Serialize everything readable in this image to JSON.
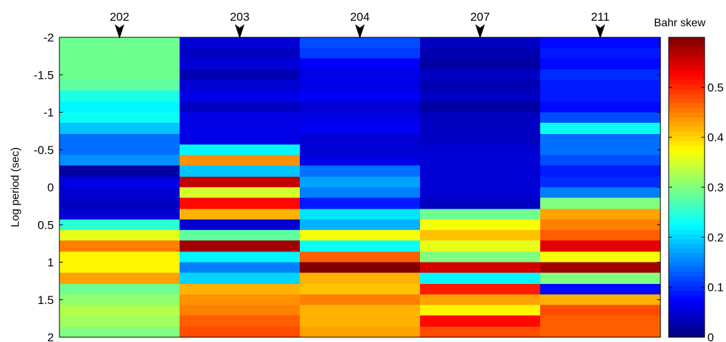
{
  "chart_data": {
    "type": "heatmap",
    "title": "",
    "xlabel": "",
    "ylabel": "Log period (sec)",
    "ylim": [
      -2,
      2
    ],
    "y_ticks": [
      -2,
      -1.5,
      -1,
      -0.5,
      0,
      0.5,
      1,
      1.5,
      2
    ],
    "y_tick_labels": [
      "-2",
      "-1.5",
      "-1",
      "-0.5",
      "0",
      "0.5",
      "1",
      "1.5",
      "2"
    ],
    "stations": [
      "202",
      "203",
      "204",
      "207",
      "211"
    ],
    "colorbar": {
      "label": "Bahr skew",
      "range": [
        0,
        0.6
      ],
      "ticks": [
        0,
        0.1,
        0.2,
        0.3,
        0.4,
        0.5
      ],
      "tick_labels": [
        "0",
        "0.1",
        "0.2",
        "0.3",
        "0.4",
        "0.5"
      ],
      "colormap": "jet"
    },
    "row_edges": [
      -2.0,
      -1.86,
      -1.72,
      -1.57,
      -1.43,
      -1.29,
      -1.14,
      -1.0,
      -0.86,
      -0.71,
      -0.57,
      -0.43,
      -0.29,
      -0.14,
      0.0,
      0.14,
      0.29,
      0.43,
      0.57,
      0.71,
      0.86,
      1.0,
      1.14,
      1.29,
      1.43,
      1.57,
      1.71,
      1.86,
      2.0
    ],
    "values": [
      [
        0.29,
        0.05,
        0.12,
        0.04,
        0.08
      ],
      [
        0.29,
        0.04,
        0.11,
        0.03,
        0.09
      ],
      [
        0.29,
        0.05,
        0.07,
        0.02,
        0.08
      ],
      [
        0.29,
        0.03,
        0.06,
        0.04,
        0.1
      ],
      [
        0.28,
        0.05,
        0.06,
        0.03,
        0.09
      ],
      [
        0.24,
        0.06,
        0.07,
        0.04,
        0.09
      ],
      [
        0.22,
        0.04,
        0.05,
        0.02,
        0.08
      ],
      [
        0.23,
        0.06,
        0.06,
        0.04,
        0.12
      ],
      [
        0.19,
        0.06,
        0.07,
        0.04,
        0.23
      ],
      [
        0.14,
        0.06,
        0.05,
        0.04,
        0.14
      ],
      [
        0.14,
        0.22,
        0.05,
        0.05,
        0.14
      ],
      [
        0.16,
        0.44,
        0.06,
        0.05,
        0.12
      ],
      [
        0.02,
        0.19,
        0.14,
        0.05,
        0.09
      ],
      [
        0.06,
        0.56,
        0.17,
        0.05,
        0.1
      ],
      [
        0.05,
        0.35,
        0.15,
        0.05,
        0.15
      ],
      [
        0.04,
        0.52,
        0.09,
        0.04,
        0.3
      ],
      [
        0.05,
        0.42,
        0.21,
        0.29,
        0.43
      ],
      [
        0.25,
        0.05,
        0.18,
        0.37,
        0.45
      ],
      [
        0.36,
        0.28,
        0.37,
        0.41,
        0.47
      ],
      [
        0.45,
        0.58,
        0.23,
        0.36,
        0.54
      ],
      [
        0.38,
        0.22,
        0.47,
        0.3,
        0.37
      ],
      [
        0.38,
        0.15,
        0.6,
        0.55,
        0.58
      ],
      [
        0.43,
        0.2,
        0.42,
        0.22,
        0.3
      ],
      [
        0.29,
        0.42,
        0.41,
        0.51,
        0.08
      ],
      [
        0.31,
        0.44,
        0.45,
        0.43,
        0.42
      ],
      [
        0.33,
        0.45,
        0.42,
        0.38,
        0.48
      ],
      [
        0.32,
        0.47,
        0.42,
        0.52,
        0.47
      ],
      [
        0.3,
        0.48,
        0.43,
        0.48,
        0.47
      ]
    ]
  }
}
